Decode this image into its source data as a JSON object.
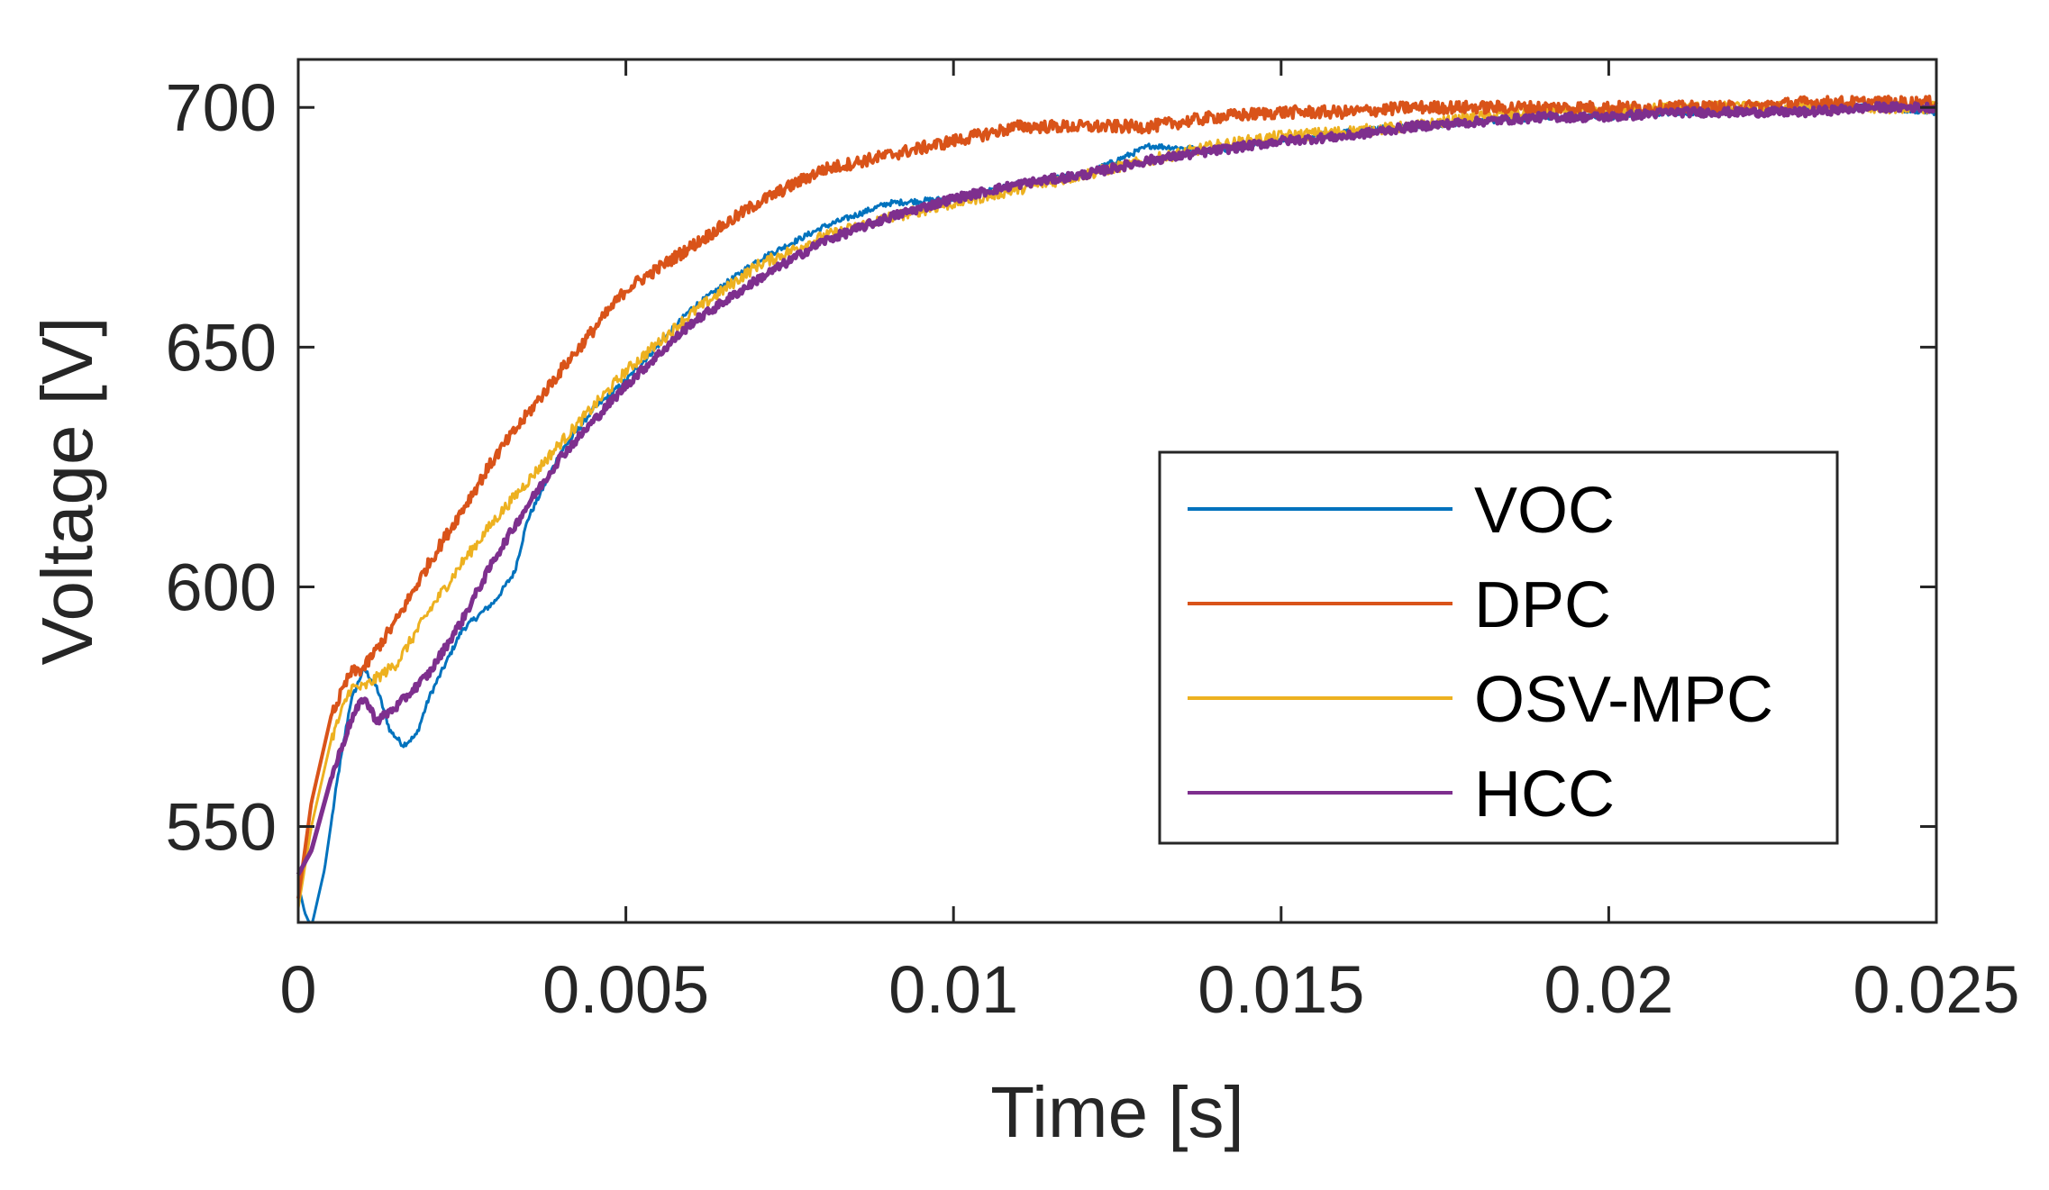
{
  "chart_data": {
    "type": "line",
    "title": "",
    "xlabel": "Time [s]",
    "ylabel": "Voltage [V]",
    "xlim": [
      0,
      0.025
    ],
    "ylim": [
      530,
      710
    ],
    "xticks": [
      0,
      0.005,
      0.01,
      0.015,
      0.02,
      0.025
    ],
    "xtick_labels": [
      "0",
      "0.005",
      "0.01",
      "0.015",
      "0.02",
      "0.025"
    ],
    "yticks": [
      550,
      600,
      650,
      700
    ],
    "ytick_labels": [
      "550",
      "600",
      "650",
      "700"
    ],
    "grid": false,
    "legend_position": "lower-right",
    "series": [
      {
        "name": "VOC",
        "color": "#0072BD",
        "x": [
          0,
          0.0001,
          0.0002,
          0.0004,
          0.0006,
          0.0008,
          0.001,
          0.0012,
          0.0014,
          0.0016,
          0.0018,
          0.002,
          0.0025,
          0.003,
          0.0033,
          0.0035,
          0.004,
          0.0045,
          0.005,
          0.006,
          0.007,
          0.008,
          0.009,
          0.01,
          0.011,
          0.012,
          0.013,
          0.014,
          0.015,
          0.016,
          0.017,
          0.018,
          0.019,
          0.02,
          0.021,
          0.022,
          0.023,
          0.024,
          0.025
        ],
        "y": [
          538,
          532,
          529,
          541,
          560,
          576,
          583,
          579,
          570,
          567,
          569,
          577,
          591,
          597,
          603,
          614,
          628,
          637,
          643,
          658,
          668,
          675,
          680,
          681,
          684,
          686,
          692,
          691,
          693,
          695,
          696,
          697,
          698,
          698,
          699,
          699,
          700,
          700,
          699
        ]
      },
      {
        "name": "DPC",
        "color": "#D95319",
        "x": [
          0,
          0.0002,
          0.0005,
          0.0008,
          0.001,
          0.0015,
          0.002,
          0.0025,
          0.003,
          0.0035,
          0.004,
          0.005,
          0.006,
          0.007,
          0.008,
          0.009,
          0.01,
          0.011,
          0.012,
          0.013,
          0.014,
          0.015,
          0.016,
          0.017,
          0.018,
          0.019,
          0.02,
          0.021,
          0.022,
          0.023,
          0.024,
          0.025
        ],
        "y": [
          535,
          555,
          573,
          582,
          583,
          593,
          605,
          616,
          627,
          636,
          645,
          662,
          671,
          680,
          687,
          690,
          693,
          696,
          696,
          696,
          698,
          699,
          699,
          700,
          700,
          700,
          700,
          700,
          700,
          701,
          701,
          701
        ]
      },
      {
        "name": "OSV-MPC",
        "color": "#EDB120",
        "x": [
          0,
          0.0002,
          0.0005,
          0.0008,
          0.001,
          0.0015,
          0.002,
          0.0025,
          0.003,
          0.0035,
          0.004,
          0.005,
          0.006,
          0.007,
          0.008,
          0.009,
          0.01,
          0.011,
          0.012,
          0.013,
          0.014,
          0.015,
          0.016,
          0.017,
          0.018,
          0.019,
          0.02,
          0.021,
          0.022,
          0.023,
          0.024,
          0.025
        ],
        "y": [
          533,
          550,
          568,
          579,
          579,
          584,
          595,
          605,
          614,
          622,
          630,
          645,
          657,
          667,
          673,
          677,
          680,
          683,
          686,
          689,
          692,
          694,
          695,
          696,
          698,
          699,
          699,
          700,
          700,
          700,
          700,
          700
        ]
      },
      {
        "name": "HCC",
        "color": "#7E2F8E",
        "x": [
          0,
          0.0002,
          0.0005,
          0.0008,
          0.001,
          0.0012,
          0.0015,
          0.002,
          0.0025,
          0.003,
          0.0035,
          0.004,
          0.005,
          0.006,
          0.007,
          0.008,
          0.009,
          0.01,
          0.011,
          0.012,
          0.013,
          0.014,
          0.015,
          0.016,
          0.017,
          0.018,
          0.019,
          0.02,
          0.021,
          0.022,
          0.023,
          0.024,
          0.025
        ],
        "y": [
          540,
          545,
          560,
          572,
          577,
          572,
          575,
          582,
          593,
          606,
          617,
          627,
          642,
          655,
          664,
          672,
          677,
          681,
          684,
          686,
          689,
          691,
          693,
          694,
          696,
          697,
          698,
          698,
          699,
          699,
          699,
          700,
          700
        ]
      }
    ]
  }
}
